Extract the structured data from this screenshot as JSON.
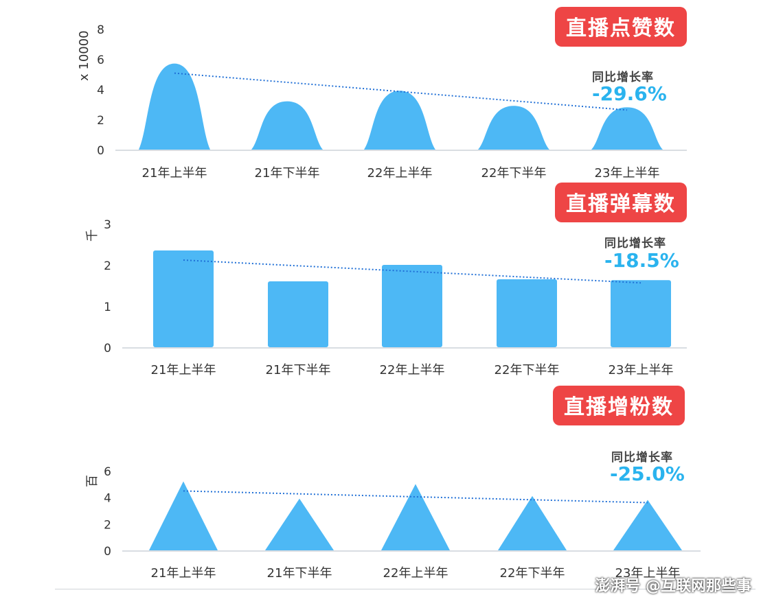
{
  "chart_data": [
    {
      "type": "area",
      "shape": "bell",
      "title": "直播点赞数",
      "ylabel": "x 10000",
      "yticks": [
        "0",
        "2",
        "4",
        "6",
        "8"
      ],
      "ylim": [
        0,
        8
      ],
      "grid": false,
      "categories": [
        "21年上半年",
        "21年下半年",
        "22年上半年",
        "22年下半年",
        "23年上半年"
      ],
      "values": [
        5.7,
        3.2,
        3.9,
        2.9,
        2.8
      ],
      "trendline": "dotted",
      "yoy_label": "同比增长率",
      "yoy_value": "-29.6%",
      "colors": {
        "mark": "#4db8f5",
        "trend": "#1f6fd6",
        "tag": "#ee4545",
        "yoy": "#2ab3ee"
      }
    },
    {
      "type": "bar",
      "title": "直播弹幕数",
      "ylabel": "千",
      "yticks": [
        "0",
        "1",
        "2",
        "3"
      ],
      "ylim": [
        0,
        3
      ],
      "grid": false,
      "categories": [
        "21年上半年",
        "21年下半年",
        "22年上半年",
        "22年下半年",
        "23年上半年"
      ],
      "values": [
        2.35,
        1.6,
        2.0,
        1.65,
        1.63
      ],
      "trendline": "dotted",
      "yoy_label": "同比增长率",
      "yoy_value": "-18.5%",
      "colors": {
        "mark": "#4db8f5",
        "trend": "#1f6fd6",
        "tag": "#ee4545",
        "yoy": "#2ab3ee"
      }
    },
    {
      "type": "area",
      "shape": "triangle",
      "title": "直播增粉数",
      "ylabel": "百",
      "yticks": [
        "0",
        "2",
        "4",
        "6"
      ],
      "ylim": [
        0,
        6
      ],
      "grid": false,
      "categories": [
        "21年上半年",
        "21年下半年",
        "22年上半年",
        "22年下半年",
        "23年上半年"
      ],
      "values": [
        5.2,
        3.9,
        5.0,
        4.1,
        3.8
      ],
      "trendline": "dotted",
      "yoy_label": "同比增长率",
      "yoy_value": "-25.0%",
      "colors": {
        "mark": "#4db8f5",
        "trend": "#1f6fd6",
        "tag": "#ee4545",
        "yoy": "#2ab3ee"
      }
    }
  ],
  "footer": {
    "credit": "澎湃号 @互联网那些事"
  }
}
